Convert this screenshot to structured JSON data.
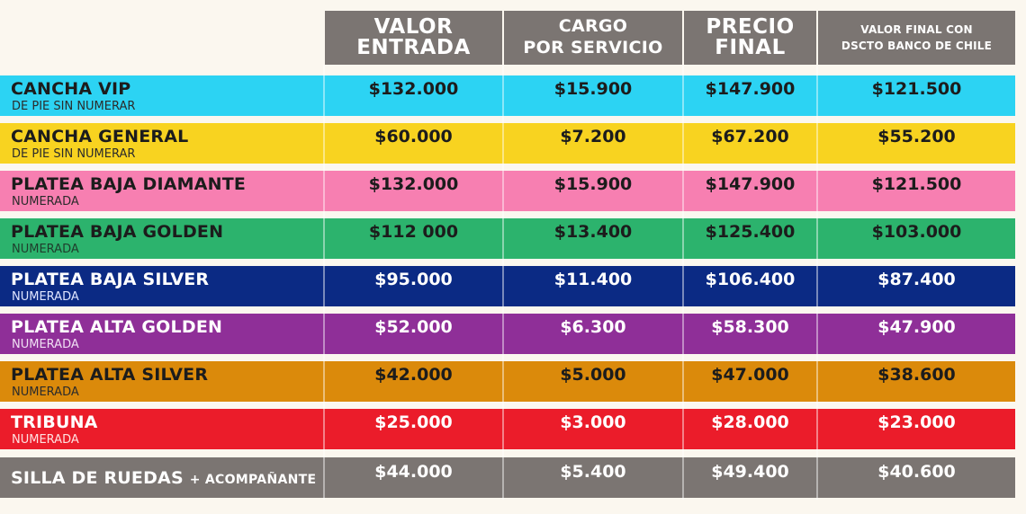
{
  "headers": {
    "valor_entrada": [
      "VALOR",
      "ENTRADA"
    ],
    "cargo_servicio": [
      "CARGO",
      "POR SERVICIO"
    ],
    "precio_final": [
      "PRECIO",
      "FINAL"
    ],
    "valor_final_dscto": [
      "VALOR FINAL CON",
      "DSCTO BANCO DE CHILE"
    ]
  },
  "rows": [
    {
      "name": "CANCHA VIP",
      "extra": "",
      "sub": "DE PIE SIN NUMERAR",
      "valor": "$132.000",
      "cargo": "$15.900",
      "precio": "$147.900",
      "dscto": "$121.500",
      "bg": "#2cd3f3",
      "fg": "#1c1c1c",
      "subfg": "#2b2b2b"
    },
    {
      "name": "CANCHA GENERAL",
      "extra": "",
      "sub": "DE PIE SIN NUMERAR",
      "valor": "$60.000",
      "cargo": "$7.200",
      "precio": "$67.200",
      "dscto": "$55.200",
      "bg": "#f8d320",
      "fg": "#1c1c1c",
      "subfg": "#2b2b2b"
    },
    {
      "name": "PLATEA BAJA DIAMANTE",
      "extra": "",
      "sub": "NUMERADA",
      "valor": "$132.000",
      "cargo": "$15.900",
      "precio": "$147.900",
      "dscto": "$121.500",
      "bg": "#f77fb1",
      "fg": "#1c1c1c",
      "subfg": "#2b2b2b"
    },
    {
      "name": "PLATEA BAJA GOLDEN",
      "extra": "",
      "sub": "NUMERADA",
      "valor": "$112 000",
      "cargo": "$13.400",
      "precio": "$125.400",
      "dscto": "$103.000",
      "bg": "#2cb36d",
      "fg": "#1c1c1c",
      "subfg": "#1f3d2c"
    },
    {
      "name": "PLATEA BAJA SILVER",
      "extra": "",
      "sub": "NUMERADA",
      "valor": "$95.000",
      "cargo": "$11.400",
      "precio": "$106.400",
      "dscto": "$87.400",
      "bg": "#0b2a84",
      "fg": "#ffffff",
      "subfg": "#dfe5ff"
    },
    {
      "name": "PLATEA ALTA GOLDEN",
      "extra": "",
      "sub": "NUMERADA",
      "valor": "$52.000",
      "cargo": "$6.300",
      "precio": "$58.300",
      "dscto": "$47.900",
      "bg": "#8f2f98",
      "fg": "#ffffff",
      "subfg": "#f0dff3"
    },
    {
      "name": "PLATEA ALTA SILVER",
      "extra": "",
      "sub": "NUMERADA",
      "valor": "$42.000",
      "cargo": "$5.000",
      "precio": "$47.000",
      "dscto": "$38.600",
      "bg": "#db8a0b",
      "fg": "#1c1c1c",
      "subfg": "#2b2b2b"
    },
    {
      "name": "TRIBUNA",
      "extra": "",
      "sub": "NUMERADA",
      "valor": "$25.000",
      "cargo": "$3.000",
      "precio": "$28.000",
      "dscto": "$23.000",
      "bg": "#eb1c2a",
      "fg": "#ffffff",
      "subfg": "#ffe0e0"
    },
    {
      "name": "SILLA DE RUEDAS",
      "extra": "+ ACOMPAÑANTE",
      "sub": "",
      "valor": "$44.000",
      "cargo": "$5.400",
      "precio": "$49.400",
      "dscto": "$40.600",
      "bg": "#7b7572",
      "fg": "#ffffff",
      "subfg": "#ffffff"
    }
  ]
}
